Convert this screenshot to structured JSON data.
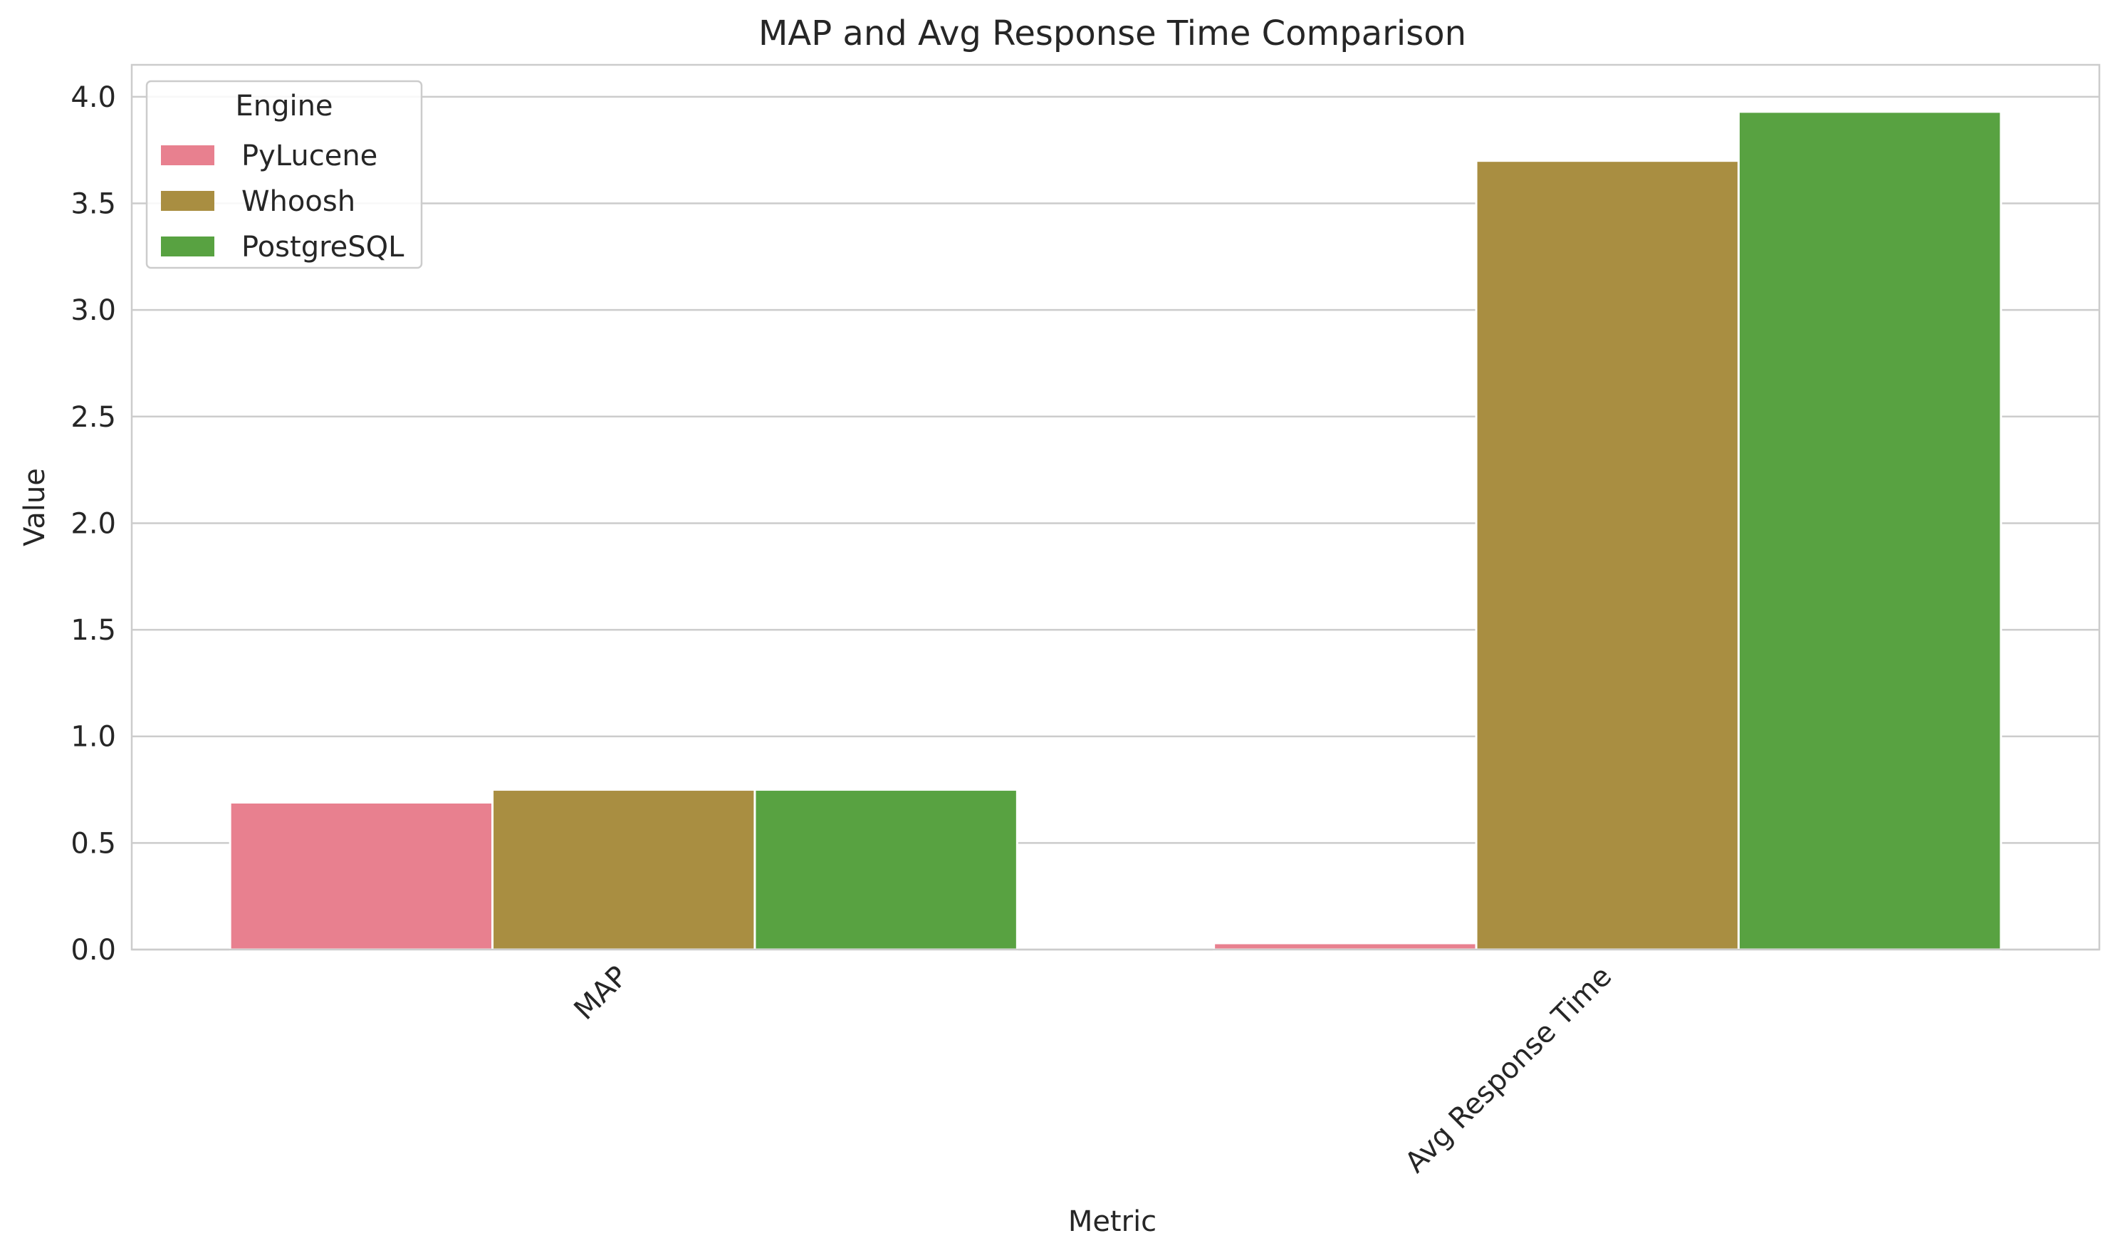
{
  "chart_data": {
    "type": "bar",
    "title": "MAP and Avg Response Time Comparison",
    "xlabel": "Metric",
    "ylabel": "Value",
    "categories": [
      "MAP",
      "Avg Response Time"
    ],
    "series": [
      {
        "name": "PyLucene",
        "values": [
          0.69,
          0.03
        ],
        "color": "#e8808f"
      },
      {
        "name": "Whoosh",
        "values": [
          0.75,
          3.7
        ],
        "color": "#a98e41"
      },
      {
        "name": "PostgreSQL",
        "values": [
          0.75,
          3.93
        ],
        "color": "#58a241"
      }
    ],
    "ylim": [
      0,
      4.15
    ],
    "yticks": [
      "0.0",
      "0.5",
      "1.0",
      "1.5",
      "2.0",
      "2.5",
      "3.0",
      "3.5",
      "4.0"
    ],
    "grid": "horizontal",
    "legend": {
      "title": "Engine",
      "placement": "top-left"
    }
  }
}
